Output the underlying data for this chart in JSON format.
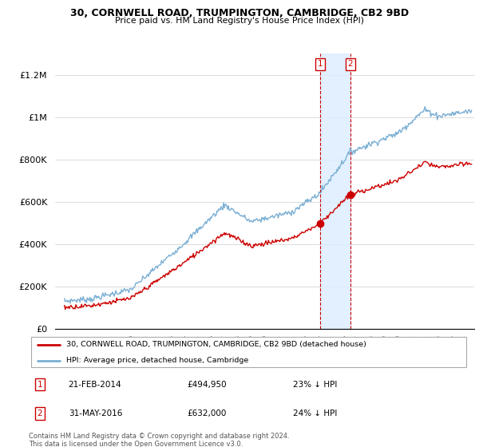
{
  "title": "30, CORNWELL ROAD, TRUMPINGTON, CAMBRIDGE, CB2 9BD",
  "subtitle": "Price paid vs. HM Land Registry's House Price Index (HPI)",
  "legend_label_red": "30, CORNWELL ROAD, TRUMPINGTON, CAMBRIDGE, CB2 9BD (detached house)",
  "legend_label_blue": "HPI: Average price, detached house, Cambridge",
  "transaction1_date": "21-FEB-2014",
  "transaction1_price": 494950,
  "transaction1_hpi_pct": 0.23,
  "transaction2_date": "31-MAY-2016",
  "transaction2_price": 632000,
  "transaction2_hpi_pct": 0.24,
  "transaction1_label": "23% ↓ HPI",
  "transaction2_label": "24% ↓ HPI",
  "footer": "Contains HM Land Registry data © Crown copyright and database right 2024.\nThis data is licensed under the Open Government Licence v3.0.",
  "red_color": "#cc0000",
  "blue_color": "#7BAFD4",
  "shade_color": "#ddeeff",
  "marker_box_color": "#cc0000",
  "t1_year": 2014.14,
  "t2_year": 2016.42,
  "ylim_max": 1300000,
  "yticks": [
    0,
    200000,
    400000,
    600000,
    800000,
    1000000,
    1200000
  ],
  "xmin": 1994.3,
  "xmax": 2025.7
}
